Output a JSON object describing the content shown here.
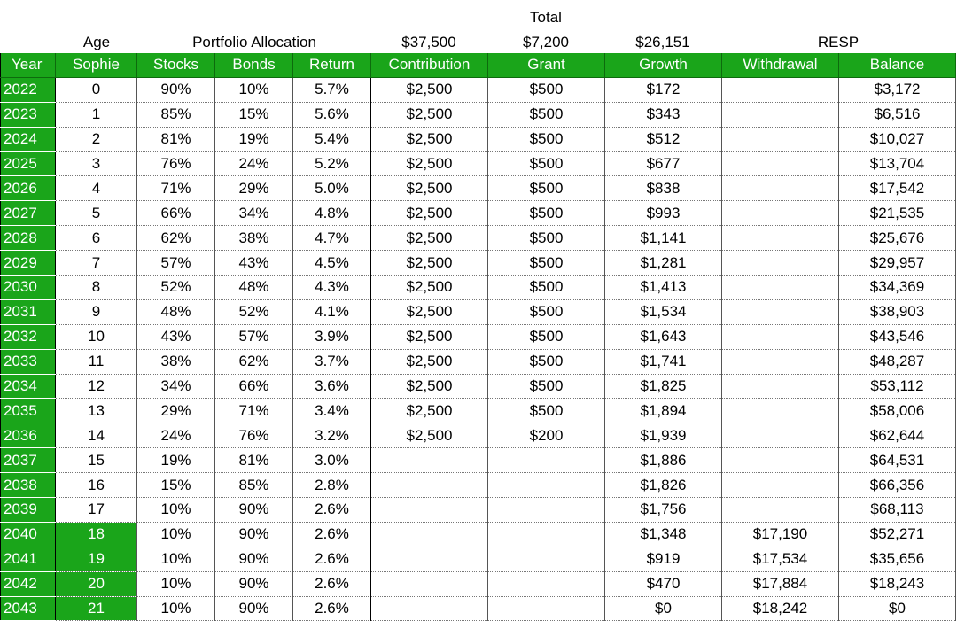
{
  "top_headers": {
    "total_label": "Total",
    "age_label": "Age",
    "portfolio_label": "Portfolio Allocation",
    "total_contribution": "$37,500",
    "total_grant": "$7,200",
    "total_growth": "$26,151",
    "resp_label": "RESP"
  },
  "columns": [
    "Year",
    "Sophie",
    "Stocks",
    "Bonds",
    "Return",
    "Contribution",
    "Grant",
    "Growth",
    "Withdrawal",
    "Balance"
  ],
  "rows": [
    {
      "year": "2022",
      "age": "0",
      "stocks": "90%",
      "bonds": "10%",
      "ret": "5.7%",
      "contribution": "$2,500",
      "grant": "$500",
      "growth": "$172",
      "withdrawal": "",
      "balance": "$3,172",
      "age_hl": false
    },
    {
      "year": "2023",
      "age": "1",
      "stocks": "85%",
      "bonds": "15%",
      "ret": "5.6%",
      "contribution": "$2,500",
      "grant": "$500",
      "growth": "$343",
      "withdrawal": "",
      "balance": "$6,516",
      "age_hl": false
    },
    {
      "year": "2024",
      "age": "2",
      "stocks": "81%",
      "bonds": "19%",
      "ret": "5.4%",
      "contribution": "$2,500",
      "grant": "$500",
      "growth": "$512",
      "withdrawal": "",
      "balance": "$10,027",
      "age_hl": false
    },
    {
      "year": "2025",
      "age": "3",
      "stocks": "76%",
      "bonds": "24%",
      "ret": "5.2%",
      "contribution": "$2,500",
      "grant": "$500",
      "growth": "$677",
      "withdrawal": "",
      "balance": "$13,704",
      "age_hl": false
    },
    {
      "year": "2026",
      "age": "4",
      "stocks": "71%",
      "bonds": "29%",
      "ret": "5.0%",
      "contribution": "$2,500",
      "grant": "$500",
      "growth": "$838",
      "withdrawal": "",
      "balance": "$17,542",
      "age_hl": false
    },
    {
      "year": "2027",
      "age": "5",
      "stocks": "66%",
      "bonds": "34%",
      "ret": "4.8%",
      "contribution": "$2,500",
      "grant": "$500",
      "growth": "$993",
      "withdrawal": "",
      "balance": "$21,535",
      "age_hl": false
    },
    {
      "year": "2028",
      "age": "6",
      "stocks": "62%",
      "bonds": "38%",
      "ret": "4.7%",
      "contribution": "$2,500",
      "grant": "$500",
      "growth": "$1,141",
      "withdrawal": "",
      "balance": "$25,676",
      "age_hl": false
    },
    {
      "year": "2029",
      "age": "7",
      "stocks": "57%",
      "bonds": "43%",
      "ret": "4.5%",
      "contribution": "$2,500",
      "grant": "$500",
      "growth": "$1,281",
      "withdrawal": "",
      "balance": "$29,957",
      "age_hl": false
    },
    {
      "year": "2030",
      "age": "8",
      "stocks": "52%",
      "bonds": "48%",
      "ret": "4.3%",
      "contribution": "$2,500",
      "grant": "$500",
      "growth": "$1,413",
      "withdrawal": "",
      "balance": "$34,369",
      "age_hl": false
    },
    {
      "year": "2031",
      "age": "9",
      "stocks": "48%",
      "bonds": "52%",
      "ret": "4.1%",
      "contribution": "$2,500",
      "grant": "$500",
      "growth": "$1,534",
      "withdrawal": "",
      "balance": "$38,903",
      "age_hl": false
    },
    {
      "year": "2032",
      "age": "10",
      "stocks": "43%",
      "bonds": "57%",
      "ret": "3.9%",
      "contribution": "$2,500",
      "grant": "$500",
      "growth": "$1,643",
      "withdrawal": "",
      "balance": "$43,546",
      "age_hl": false
    },
    {
      "year": "2033",
      "age": "11",
      "stocks": "38%",
      "bonds": "62%",
      "ret": "3.7%",
      "contribution": "$2,500",
      "grant": "$500",
      "growth": "$1,741",
      "withdrawal": "",
      "balance": "$48,287",
      "age_hl": false
    },
    {
      "year": "2034",
      "age": "12",
      "stocks": "34%",
      "bonds": "66%",
      "ret": "3.6%",
      "contribution": "$2,500",
      "grant": "$500",
      "growth": "$1,825",
      "withdrawal": "",
      "balance": "$53,112",
      "age_hl": false
    },
    {
      "year": "2035",
      "age": "13",
      "stocks": "29%",
      "bonds": "71%",
      "ret": "3.4%",
      "contribution": "$2,500",
      "grant": "$500",
      "growth": "$1,894",
      "withdrawal": "",
      "balance": "$58,006",
      "age_hl": false
    },
    {
      "year": "2036",
      "age": "14",
      "stocks": "24%",
      "bonds": "76%",
      "ret": "3.2%",
      "contribution": "$2,500",
      "grant": "$200",
      "growth": "$1,939",
      "withdrawal": "",
      "balance": "$62,644",
      "age_hl": false
    },
    {
      "year": "2037",
      "age": "15",
      "stocks": "19%",
      "bonds": "81%",
      "ret": "3.0%",
      "contribution": "",
      "grant": "",
      "growth": "$1,886",
      "withdrawal": "",
      "balance": "$64,531",
      "age_hl": false
    },
    {
      "year": "2038",
      "age": "16",
      "stocks": "15%",
      "bonds": "85%",
      "ret": "2.8%",
      "contribution": "",
      "grant": "",
      "growth": "$1,826",
      "withdrawal": "",
      "balance": "$66,356",
      "age_hl": false
    },
    {
      "year": "2039",
      "age": "17",
      "stocks": "10%",
      "bonds": "90%",
      "ret": "2.6%",
      "contribution": "",
      "grant": "",
      "growth": "$1,756",
      "withdrawal": "",
      "balance": "$68,113",
      "age_hl": false
    },
    {
      "year": "2040",
      "age": "18",
      "stocks": "10%",
      "bonds": "90%",
      "ret": "2.6%",
      "contribution": "",
      "grant": "",
      "growth": "$1,348",
      "withdrawal": "$17,190",
      "balance": "$52,271",
      "age_hl": true
    },
    {
      "year": "2041",
      "age": "19",
      "stocks": "10%",
      "bonds": "90%",
      "ret": "2.6%",
      "contribution": "",
      "grant": "",
      "growth": "$919",
      "withdrawal": "$17,534",
      "balance": "$35,656",
      "age_hl": true
    },
    {
      "year": "2042",
      "age": "20",
      "stocks": "10%",
      "bonds": "90%",
      "ret": "2.6%",
      "contribution": "",
      "grant": "",
      "growth": "$470",
      "withdrawal": "$17,884",
      "balance": "$18,243",
      "age_hl": true
    },
    {
      "year": "2043",
      "age": "21",
      "stocks": "10%",
      "bonds": "90%",
      "ret": "2.6%",
      "contribution": "",
      "grant": "",
      "growth": "$0",
      "withdrawal": "$18,242",
      "balance": "$0",
      "age_hl": true
    }
  ],
  "colors": {
    "header_green": "#1aa51a"
  }
}
